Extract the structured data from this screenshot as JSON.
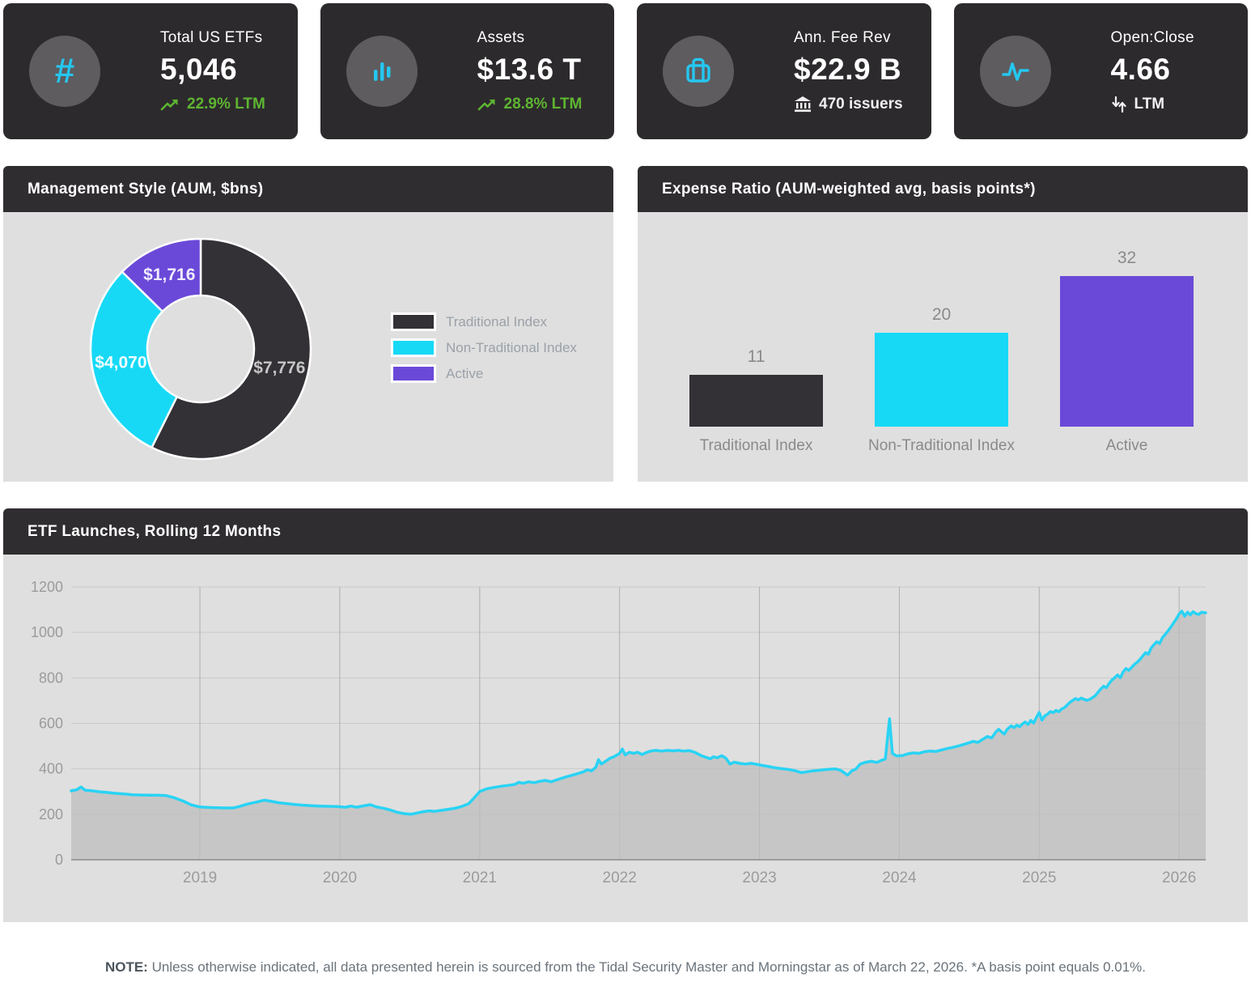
{
  "kpis": [
    {
      "icon": "hash-icon",
      "icon_glyph": "#",
      "title": "Total US ETFs",
      "value": "5,046",
      "sub": "22.9% LTM",
      "sub_icon": "trending-up-icon"
    },
    {
      "icon": "bar-chart-icon",
      "title": "Assets",
      "value": "$13.6 T",
      "sub": "28.8% LTM",
      "sub_icon": "trending-up-icon"
    },
    {
      "icon": "briefcase-icon",
      "title": "Ann. Fee Rev",
      "value": "$22.9 B",
      "sub": "470 issuers",
      "sub_icon": "bank-icon"
    },
    {
      "icon": "pulse-icon",
      "title": "Open:Close",
      "value": "4.66",
      "sub": "LTM",
      "sub_icon": "down-up-arrows-icon"
    }
  ],
  "panels": {
    "management_style": {
      "title": "Management Style (AUM, $bns)"
    },
    "expense_ratio": {
      "title": "Expense Ratio (AUM-weighted avg, basis points*)"
    },
    "etf_launches": {
      "title": "ETF Launches, Rolling 12 Months"
    }
  },
  "colors": {
    "card_bg": "#2d2a2d",
    "icon_circle": "#5e5c5e",
    "icon_cyan": "#25c6ef",
    "green": "#5db531",
    "header_bg": "#302d31",
    "panel_bg": "#dfdfdf",
    "dark_series": "#333036",
    "cyan_series": "#17d9f6",
    "purple_series": "#6a49d8"
  },
  "chart_data": [
    {
      "type": "pie",
      "donut": true,
      "title": "Management Style (AUM, $bns)",
      "legend_position": "right",
      "labels": [
        "Traditional Index",
        "Non-Traditional Index",
        "Active"
      ],
      "values": [
        7776,
        4070,
        1716
      ],
      "display_values": [
        "$7,776",
        "$4,070",
        "$1,716"
      ],
      "colors": [
        "#333036",
        "#17d9f6",
        "#6a49d8"
      ],
      "label_colors": [
        "#c6c6c6",
        "#f2fdff",
        "#f1edff"
      ]
    },
    {
      "type": "bar",
      "title": "Expense Ratio (AUM-weighted avg, basis points*)",
      "categories": [
        "Traditional Index",
        "Non-Traditional Index",
        "Active"
      ],
      "values": [
        11,
        20,
        32
      ],
      "colors": [
        "#333036",
        "#17d9f6",
        "#6a49d8"
      ],
      "ylim": [
        0,
        36
      ],
      "grid": false
    },
    {
      "type": "area",
      "title": "ETF Launches, Rolling 12 Months",
      "ylabel": "",
      "xlabel": "",
      "grid": true,
      "xlim": [
        2018.08,
        2026.19
      ],
      "ylim": [
        0,
        1200
      ],
      "yticks": [
        0,
        200,
        400,
        600,
        800,
        1000,
        1200
      ],
      "xticks": [
        2019,
        2020,
        2021,
        2022,
        2023,
        2024,
        2025,
        2026
      ],
      "line_color": "#29d3f4",
      "fill_color": "#bdbdbd",
      "points": [
        [
          2018.08,
          303
        ],
        [
          2018.12,
          308
        ],
        [
          2018.15,
          320
        ],
        [
          2018.18,
          306
        ],
        [
          2018.22,
          304
        ],
        [
          2018.28,
          299
        ],
        [
          2018.34,
          296
        ],
        [
          2018.4,
          292
        ],
        [
          2018.46,
          289
        ],
        [
          2018.52,
          286
        ],
        [
          2018.58,
          285
        ],
        [
          2018.64,
          284
        ],
        [
          2018.7,
          284
        ],
        [
          2018.76,
          282
        ],
        [
          2018.82,
          272
        ],
        [
          2018.88,
          258
        ],
        [
          2018.94,
          241
        ],
        [
          2019.0,
          232
        ],
        [
          2019.06,
          230
        ],
        [
          2019.12,
          229
        ],
        [
          2019.18,
          228
        ],
        [
          2019.24,
          228
        ],
        [
          2019.28,
          234
        ],
        [
          2019.34,
          245
        ],
        [
          2019.4,
          253
        ],
        [
          2019.46,
          262
        ],
        [
          2019.5,
          258
        ],
        [
          2019.56,
          251
        ],
        [
          2019.62,
          247
        ],
        [
          2019.68,
          243
        ],
        [
          2019.74,
          240
        ],
        [
          2019.8,
          238
        ],
        [
          2019.86,
          236
        ],
        [
          2019.92,
          235
        ],
        [
          2019.98,
          234
        ],
        [
          2020.04,
          231
        ],
        [
          2020.08,
          236
        ],
        [
          2020.12,
          231
        ],
        [
          2020.17,
          237
        ],
        [
          2020.22,
          242
        ],
        [
          2020.26,
          233
        ],
        [
          2020.31,
          227
        ],
        [
          2020.36,
          219
        ],
        [
          2020.41,
          209
        ],
        [
          2020.46,
          203
        ],
        [
          2020.51,
          200
        ],
        [
          2020.56,
          207
        ],
        [
          2020.6,
          212
        ],
        [
          2020.64,
          215
        ],
        [
          2020.68,
          213
        ],
        [
          2020.72,
          217
        ],
        [
          2020.77,
          221
        ],
        [
          2020.82,
          226
        ],
        [
          2020.87,
          234
        ],
        [
          2020.92,
          246
        ],
        [
          2020.96,
          272
        ],
        [
          2021.0,
          300
        ],
        [
          2021.05,
          312
        ],
        [
          2021.1,
          318
        ],
        [
          2021.15,
          323
        ],
        [
          2021.2,
          327
        ],
        [
          2021.25,
          331
        ],
        [
          2021.28,
          341
        ],
        [
          2021.31,
          336
        ],
        [
          2021.35,
          343
        ],
        [
          2021.39,
          339
        ],
        [
          2021.43,
          345
        ],
        [
          2021.47,
          349
        ],
        [
          2021.51,
          343
        ],
        [
          2021.55,
          351
        ],
        [
          2021.6,
          361
        ],
        [
          2021.65,
          370
        ],
        [
          2021.7,
          379
        ],
        [
          2021.74,
          386
        ],
        [
          2021.77,
          396
        ],
        [
          2021.8,
          391
        ],
        [
          2021.83,
          407
        ],
        [
          2021.85,
          440
        ],
        [
          2021.87,
          421
        ],
        [
          2021.9,
          433
        ],
        [
          2021.93,
          446
        ],
        [
          2021.96,
          453
        ],
        [
          2022.0,
          468
        ],
        [
          2022.02,
          487
        ],
        [
          2022.04,
          461
        ],
        [
          2022.07,
          473
        ],
        [
          2022.1,
          468
        ],
        [
          2022.13,
          473
        ],
        [
          2022.16,
          463
        ],
        [
          2022.19,
          471
        ],
        [
          2022.22,
          478
        ],
        [
          2022.26,
          481
        ],
        [
          2022.3,
          478
        ],
        [
          2022.34,
          481
        ],
        [
          2022.38,
          479
        ],
        [
          2022.42,
          481
        ],
        [
          2022.46,
          478
        ],
        [
          2022.5,
          480
        ],
        [
          2022.54,
          472
        ],
        [
          2022.58,
          459
        ],
        [
          2022.62,
          450
        ],
        [
          2022.65,
          444
        ],
        [
          2022.67,
          453
        ],
        [
          2022.7,
          449
        ],
        [
          2022.73,
          458
        ],
        [
          2022.76,
          447
        ],
        [
          2022.79,
          421
        ],
        [
          2022.82,
          429
        ],
        [
          2022.86,
          424
        ],
        [
          2022.9,
          421
        ],
        [
          2022.94,
          424
        ],
        [
          2022.98,
          420
        ],
        [
          2023.02,
          415
        ],
        [
          2023.06,
          411
        ],
        [
          2023.1,
          406
        ],
        [
          2023.14,
          402
        ],
        [
          2023.18,
          399
        ],
        [
          2023.22,
          396
        ],
        [
          2023.26,
          391
        ],
        [
          2023.3,
          383
        ],
        [
          2023.34,
          387
        ],
        [
          2023.38,
          391
        ],
        [
          2023.42,
          393
        ],
        [
          2023.46,
          396
        ],
        [
          2023.5,
          398
        ],
        [
          2023.54,
          400
        ],
        [
          2023.58,
          394
        ],
        [
          2023.61,
          381
        ],
        [
          2023.63,
          372
        ],
        [
          2023.66,
          391
        ],
        [
          2023.69,
          399
        ],
        [
          2023.72,
          421
        ],
        [
          2023.76,
          429
        ],
        [
          2023.8,
          433
        ],
        [
          2023.84,
          428
        ],
        [
          2023.87,
          437
        ],
        [
          2023.9,
          443
        ],
        [
          2023.93,
          620
        ],
        [
          2023.95,
          468
        ],
        [
          2023.98,
          457
        ],
        [
          2024.02,
          458
        ],
        [
          2024.06,
          466
        ],
        [
          2024.1,
          470
        ],
        [
          2024.14,
          468
        ],
        [
          2024.18,
          475
        ],
        [
          2024.22,
          478
        ],
        [
          2024.26,
          476
        ],
        [
          2024.3,
          483
        ],
        [
          2024.34,
          489
        ],
        [
          2024.38,
          494
        ],
        [
          2024.42,
          500
        ],
        [
          2024.46,
          507
        ],
        [
          2024.5,
          515
        ],
        [
          2024.53,
          521
        ],
        [
          2024.56,
          516
        ],
        [
          2024.6,
          531
        ],
        [
          2024.63,
          542
        ],
        [
          2024.66,
          536
        ],
        [
          2024.69,
          562
        ],
        [
          2024.71,
          574
        ],
        [
          2024.73,
          563
        ],
        [
          2024.75,
          553
        ],
        [
          2024.77,
          573
        ],
        [
          2024.8,
          589
        ],
        [
          2024.82,
          581
        ],
        [
          2024.84,
          592
        ],
        [
          2024.86,
          585
        ],
        [
          2024.88,
          597
        ],
        [
          2024.9,
          606
        ],
        [
          2024.92,
          595
        ],
        [
          2024.94,
          613
        ],
        [
          2024.96,
          601
        ],
        [
          2024.98,
          626
        ],
        [
          2025.0,
          648
        ],
        [
          2025.02,
          614
        ],
        [
          2025.04,
          633
        ],
        [
          2025.06,
          641
        ],
        [
          2025.08,
          652
        ],
        [
          2025.1,
          647
        ],
        [
          2025.12,
          657
        ],
        [
          2025.14,
          651
        ],
        [
          2025.16,
          663
        ],
        [
          2025.18,
          669
        ],
        [
          2025.2,
          681
        ],
        [
          2025.22,
          693
        ],
        [
          2025.24,
          701
        ],
        [
          2025.26,
          709
        ],
        [
          2025.28,
          703
        ],
        [
          2025.3,
          711
        ],
        [
          2025.32,
          706
        ],
        [
          2025.34,
          701
        ],
        [
          2025.36,
          705
        ],
        [
          2025.38,
          713
        ],
        [
          2025.4,
          721
        ],
        [
          2025.42,
          736
        ],
        [
          2025.44,
          751
        ],
        [
          2025.46,
          763
        ],
        [
          2025.48,
          757
        ],
        [
          2025.5,
          776
        ],
        [
          2025.52,
          791
        ],
        [
          2025.54,
          801
        ],
        [
          2025.56,
          813
        ],
        [
          2025.58,
          801
        ],
        [
          2025.6,
          826
        ],
        [
          2025.62,
          841
        ],
        [
          2025.64,
          833
        ],
        [
          2025.66,
          846
        ],
        [
          2025.68,
          859
        ],
        [
          2025.7,
          869
        ],
        [
          2025.72,
          881
        ],
        [
          2025.74,
          896
        ],
        [
          2025.76,
          911
        ],
        [
          2025.78,
          904
        ],
        [
          2025.8,
          931
        ],
        [
          2025.82,
          946
        ],
        [
          2025.84,
          959
        ],
        [
          2025.86,
          951
        ],
        [
          2025.88,
          976
        ],
        [
          2025.9,
          991
        ],
        [
          2025.92,
          1006
        ],
        [
          2025.94,
          1023
        ],
        [
          2025.96,
          1041
        ],
        [
          2025.98,
          1059
        ],
        [
          2026.0,
          1081
        ],
        [
          2026.02,
          1093
        ],
        [
          2026.04,
          1071
        ],
        [
          2026.06,
          1089
        ],
        [
          2026.08,
          1077
        ],
        [
          2026.1,
          1091
        ],
        [
          2026.12,
          1083
        ],
        [
          2026.14,
          1079
        ],
        [
          2026.16,
          1089
        ],
        [
          2026.19,
          1086
        ]
      ]
    }
  ],
  "note": {
    "label": "NOTE:",
    "text": "Unless otherwise indicated, all data presented herein is sourced from the Tidal Security Master and Morningstar as of March 22, 2026. *A basis point equals 0.01%."
  }
}
